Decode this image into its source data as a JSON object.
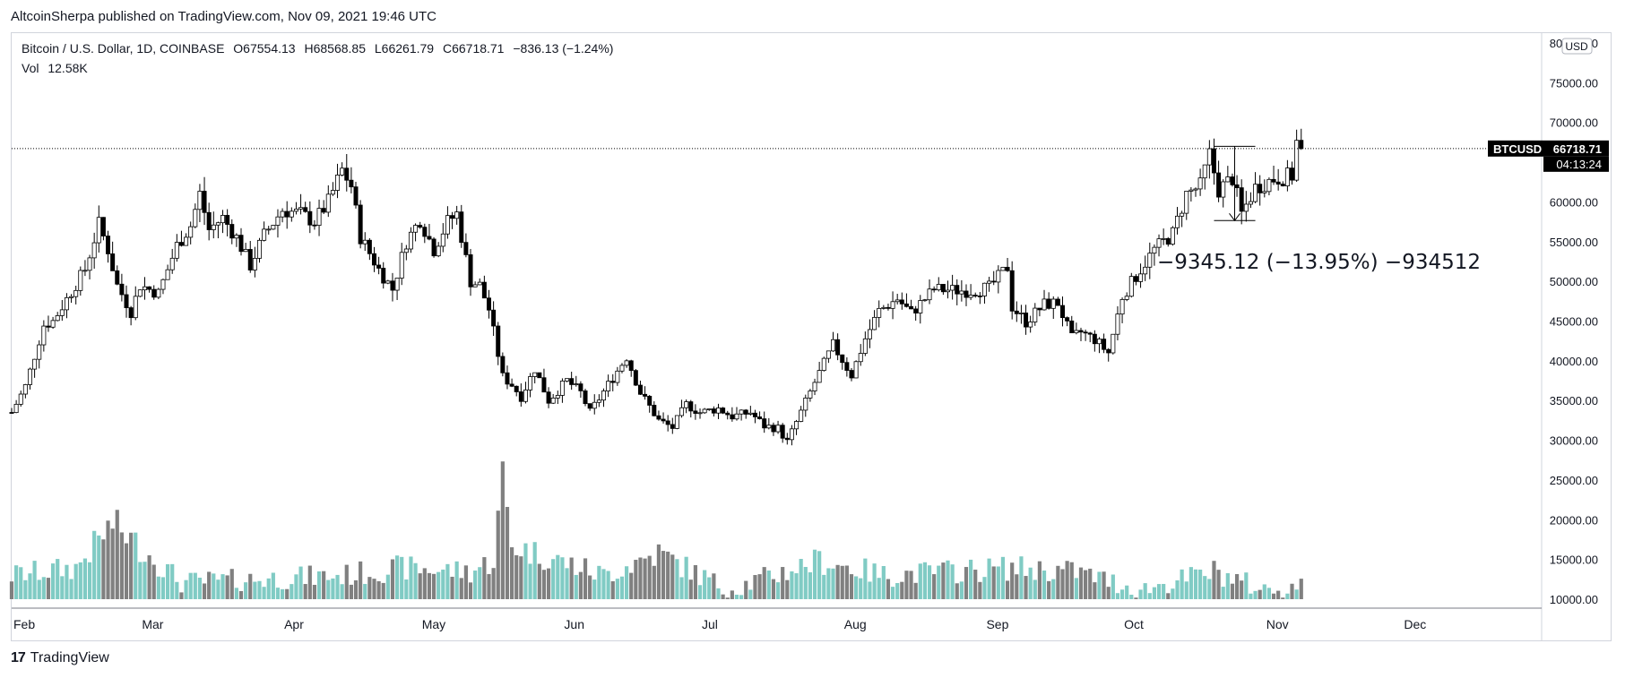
{
  "publisher_line": "AltcoinSherpa published on TradingView.com, Nov 09, 2021 19:46 UTC",
  "symbol": {
    "name": "Bitcoin / U.S. Dollar, 1D, COINBASE",
    "open": "O67554.13",
    "high": "H68568.85",
    "low": "L66261.79",
    "close": "C66718.71",
    "change": "−836.13 (−1.24%)"
  },
  "volume": {
    "label": "Vol",
    "value": "12.58K"
  },
  "currency_badge": "USD",
  "price_tag": {
    "ticker": "BTCUSD",
    "price": "66718.71",
    "countdown": "04:13:24"
  },
  "measure_label": "−9345.12 (−13.95%) −934512",
  "footer_brand": "TradingView",
  "logo_glyph": "17",
  "colors": {
    "up_fill": "#ffffff",
    "down_fill": "#000000",
    "vol_up": "#80cbc4",
    "vol_down": "#808080",
    "axis": "#787b86"
  },
  "chart_data": {
    "type": "candlestick",
    "ylim": [
      10000,
      80000
    ],
    "y_ticks": [
      "80000.00",
      "75000.00",
      "70000.00",
      "65000.00",
      "60000.00",
      "55000.00",
      "50000.00",
      "45000.00",
      "40000.00",
      "35000.00",
      "30000.00",
      "25000.00",
      "20000.00",
      "15000.00",
      "10000.00"
    ],
    "x_ticks": [
      "Feb",
      "Mar",
      "Apr",
      "May",
      "Jun",
      "Jul",
      "Aug",
      "Sep",
      "Oct",
      "Nov",
      "Dec"
    ],
    "x_range": [
      "2021-02-01",
      "2021-12-31"
    ],
    "last_price": 66718.71,
    "measurement": {
      "from_price": 67000,
      "to_price": 57650,
      "start_date": "2021-10-21",
      "end_date": "2021-10-30"
    },
    "price_points": [
      [
        "2021-02-01",
        33500
      ],
      [
        "2021-02-04",
        36800
      ],
      [
        "2021-02-08",
        44500
      ],
      [
        "2021-02-10",
        45000
      ],
      [
        "2021-02-14",
        48700
      ],
      [
        "2021-02-17",
        51500
      ],
      [
        "2021-02-20",
        57200
      ],
      [
        "2021-02-22",
        54000
      ],
      [
        "2021-02-24",
        49500
      ],
      [
        "2021-02-27",
        46200
      ],
      [
        "2021-03-01",
        49500
      ],
      [
        "2021-03-05",
        48500
      ],
      [
        "2021-03-09",
        54500
      ],
      [
        "2021-03-12",
        57000
      ],
      [
        "2021-03-14",
        61000
      ],
      [
        "2021-03-16",
        56500
      ],
      [
        "2021-03-19",
        58000
      ],
      [
        "2021-03-22",
        55500
      ],
      [
        "2021-03-25",
        52000
      ],
      [
        "2021-03-28",
        55800
      ],
      [
        "2021-04-01",
        59000
      ],
      [
        "2021-04-05",
        58500
      ],
      [
        "2021-04-08",
        57500
      ],
      [
        "2021-04-11",
        60000
      ],
      [
        "2021-04-14",
        64000
      ],
      [
        "2021-04-16",
        62000
      ],
      [
        "2021-04-18",
        55600
      ],
      [
        "2021-04-22",
        51500
      ],
      [
        "2021-04-25",
        49000
      ],
      [
        "2021-04-28",
        55000
      ],
      [
        "2021-05-01",
        57800
      ],
      [
        "2021-05-04",
        54000
      ],
      [
        "2021-05-07",
        57500
      ],
      [
        "2021-05-09",
        58500
      ],
      [
        "2021-05-12",
        50000
      ],
      [
        "2021-05-14",
        49500
      ],
      [
        "2021-05-16",
        46500
      ],
      [
        "2021-05-19",
        38000
      ],
      [
        "2021-05-21",
        37000
      ],
      [
        "2021-05-23",
        35500
      ],
      [
        "2021-05-26",
        39000
      ],
      [
        "2021-05-29",
        35000
      ],
      [
        "2021-06-02",
        37500
      ],
      [
        "2021-06-05",
        36000
      ],
      [
        "2021-06-07",
        33500
      ],
      [
        "2021-06-11",
        37000
      ],
      [
        "2021-06-15",
        40500
      ],
      [
        "2021-06-18",
        36000
      ],
      [
        "2021-06-22",
        32500
      ],
      [
        "2021-06-25",
        31600
      ],
      [
        "2021-06-28",
        34500
      ],
      [
        "2021-07-01",
        33500
      ],
      [
        "2021-07-05",
        34000
      ],
      [
        "2021-07-08",
        33000
      ],
      [
        "2021-07-12",
        33500
      ],
      [
        "2021-07-15",
        31800
      ],
      [
        "2021-07-18",
        31500
      ],
      [
        "2021-07-20",
        29800
      ],
      [
        "2021-07-22",
        32300
      ],
      [
        "2021-07-26",
        37300
      ],
      [
        "2021-07-30",
        42000
      ],
      [
        "2021-08-03",
        38200
      ],
      [
        "2021-08-06",
        42800
      ],
      [
        "2021-08-09",
        46300
      ],
      [
        "2021-08-13",
        47800
      ],
      [
        "2021-08-16",
        46000
      ],
      [
        "2021-08-21",
        49000
      ],
      [
        "2021-08-25",
        48900
      ],
      [
        "2021-08-29",
        48800
      ],
      [
        "2021-09-02",
        49200
      ],
      [
        "2021-09-06",
        51800
      ],
      [
        "2021-09-07",
        46800
      ],
      [
        "2021-09-10",
        44900
      ],
      [
        "2021-09-14",
        47100
      ],
      [
        "2021-09-17",
        47300
      ],
      [
        "2021-09-20",
        42800
      ],
      [
        "2021-09-22",
        43600
      ],
      [
        "2021-09-25",
        42700
      ],
      [
        "2021-09-28",
        41000
      ],
      [
        "2021-10-01",
        48100
      ],
      [
        "2021-10-05",
        51500
      ],
      [
        "2021-10-08",
        54000
      ],
      [
        "2021-10-12",
        56000
      ],
      [
        "2021-10-15",
        61000
      ],
      [
        "2021-10-18",
        62000
      ],
      [
        "2021-10-20",
        66000
      ],
      [
        "2021-10-22",
        61500
      ],
      [
        "2021-10-25",
        63000
      ],
      [
        "2021-10-27",
        58500
      ],
      [
        "2021-10-30",
        61800
      ],
      [
        "2021-11-03",
        62900
      ],
      [
        "2021-11-07",
        63300
      ],
      [
        "2021-11-08",
        67500
      ],
      [
        "2021-11-09",
        66718.71
      ]
    ],
    "volume_points": [
      [
        "2021-02-01",
        14000
      ],
      [
        "2021-02-15",
        15000
      ],
      [
        "2021-02-23",
        21000
      ],
      [
        "2021-03-10",
        13000
      ],
      [
        "2021-04-15",
        14000
      ],
      [
        "2021-04-27",
        15000
      ],
      [
        "2021-05-12",
        14500
      ],
      [
        "2021-05-17",
        16000
      ],
      [
        "2021-05-19",
        27500
      ],
      [
        "2021-05-21",
        18000
      ],
      [
        "2021-06-10",
        14000
      ],
      [
        "2021-06-22",
        17000
      ],
      [
        "2021-07-07",
        12000
      ],
      [
        "2021-07-27",
        16000
      ],
      [
        "2021-08-10",
        14000
      ],
      [
        "2021-09-07",
        15000
      ],
      [
        "2021-09-21",
        14500
      ],
      [
        "2021-10-05",
        12000
      ],
      [
        "2021-10-21",
        14500
      ],
      [
        "2021-11-01",
        12000
      ],
      [
        "2021-11-09",
        12580
      ]
    ]
  }
}
